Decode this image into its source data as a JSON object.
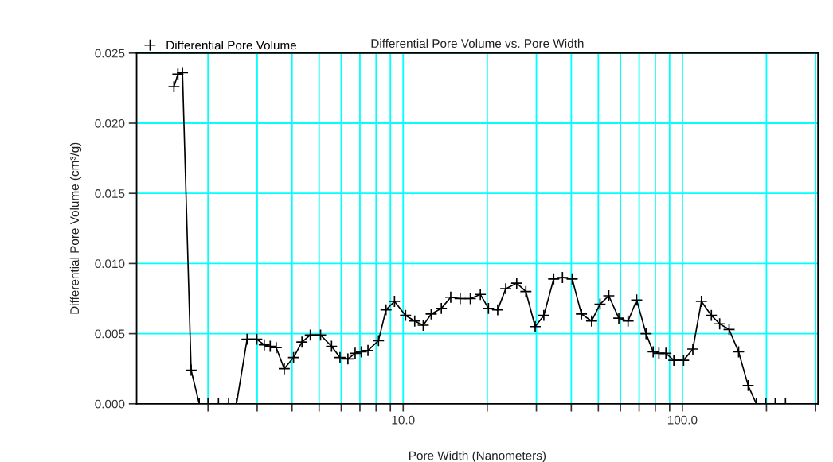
{
  "chart_data": {
    "type": "line",
    "title": "Differential Pore Volume vs. Pore Width",
    "xlabel": "Pore Width (Nanometers)",
    "ylabel": "Differential Pore Volume (cm³/g)",
    "log": "x",
    "grid": true,
    "legend": "top left",
    "marker": "cross",
    "line_style": "solid",
    "xlim": [
      1.11,
      306
    ],
    "ylim": [
      0,
      0.025
    ],
    "xticks": [
      {
        "value": 2,
        "label": null
      },
      {
        "value": 3,
        "label": null
      },
      {
        "value": 4,
        "label": null
      },
      {
        "value": 5,
        "label": null
      },
      {
        "value": 6,
        "label": null
      },
      {
        "value": 7,
        "label": null
      },
      {
        "value": 8,
        "label": null
      },
      {
        "value": 9,
        "label": null
      },
      {
        "value": 10,
        "label": "10.0"
      },
      {
        "value": 20,
        "label": null
      },
      {
        "value": 30,
        "label": null
      },
      {
        "value": 40,
        "label": null
      },
      {
        "value": 50,
        "label": null
      },
      {
        "value": 60,
        "label": null
      },
      {
        "value": 70,
        "label": null
      },
      {
        "value": 80,
        "label": null
      },
      {
        "value": 90,
        "label": null
      },
      {
        "value": 100,
        "label": "100.0"
      },
      {
        "value": 200,
        "label": null
      },
      {
        "value": 300,
        "label": null
      }
    ],
    "yticks": [
      {
        "value": 0,
        "label": "0.000"
      },
      {
        "value": 0.005,
        "label": "0.005"
      },
      {
        "value": 0.01,
        "label": "0.010"
      },
      {
        "value": 0.015,
        "label": "0.015"
      },
      {
        "value": 0.02,
        "label": "0.020"
      },
      {
        "value": 0.025,
        "label": "0.025"
      }
    ],
    "series": [
      {
        "name": "Differential Pore Volume",
        "color": "#000000",
        "x": [
          1.51,
          1.56,
          1.62,
          1.74,
          1.86,
          2.0,
          2.18,
          2.37,
          2.53,
          2.76,
          2.99,
          3.18,
          3.34,
          3.51,
          3.75,
          4.05,
          4.34,
          4.65,
          5.06,
          5.54,
          5.94,
          6.34,
          6.73,
          7.08,
          7.48,
          8.16,
          8.68,
          9.31,
          10.2,
          11.0,
          11.8,
          12.6,
          13.7,
          14.8,
          16.0,
          17.4,
          18.9,
          20.2,
          21.8,
          23.3,
          25.5,
          27.5,
          29.7,
          31.9,
          34.6,
          37.2,
          40.3,
          43.5,
          47.3,
          50.7,
          54.5,
          59.2,
          63.9,
          68.6,
          74.1,
          78.6,
          82.4,
          87.3,
          93.2,
          101,
          109,
          117,
          127,
          136,
          147,
          159,
          172,
          184,
          199,
          215,
          234
        ],
        "values": [
          0.0226,
          0.0235,
          0.0236,
          0.0024,
          0,
          0,
          0,
          0,
          0,
          0.0046,
          0.0046,
          0.0042,
          0.0041,
          0.004,
          0.0025,
          0.0033,
          0.0044,
          0.0049,
          0.0049,
          0.0041,
          0.0033,
          0.0032,
          0.0036,
          0.0037,
          0.0038,
          0.0045,
          0.0067,
          0.0073,
          0.0063,
          0.0059,
          0.0056,
          0.0064,
          0.0068,
          0.0076,
          0.0075,
          0.0075,
          0.0078,
          0.0068,
          0.0067,
          0.0082,
          0.0086,
          0.008,
          0.0055,
          0.0063,
          0.0089,
          0.009,
          0.0089,
          0.0064,
          0.0059,
          0.0071,
          0.0077,
          0.0061,
          0.0059,
          0.0074,
          0.005,
          0.0037,
          0.0036,
          0.0036,
          0.0031,
          0.0031,
          0.0039,
          0.0073,
          0.0063,
          0.0057,
          0.0053,
          0.0037,
          0.0013,
          0,
          0,
          0,
          0
        ]
      }
    ]
  }
}
